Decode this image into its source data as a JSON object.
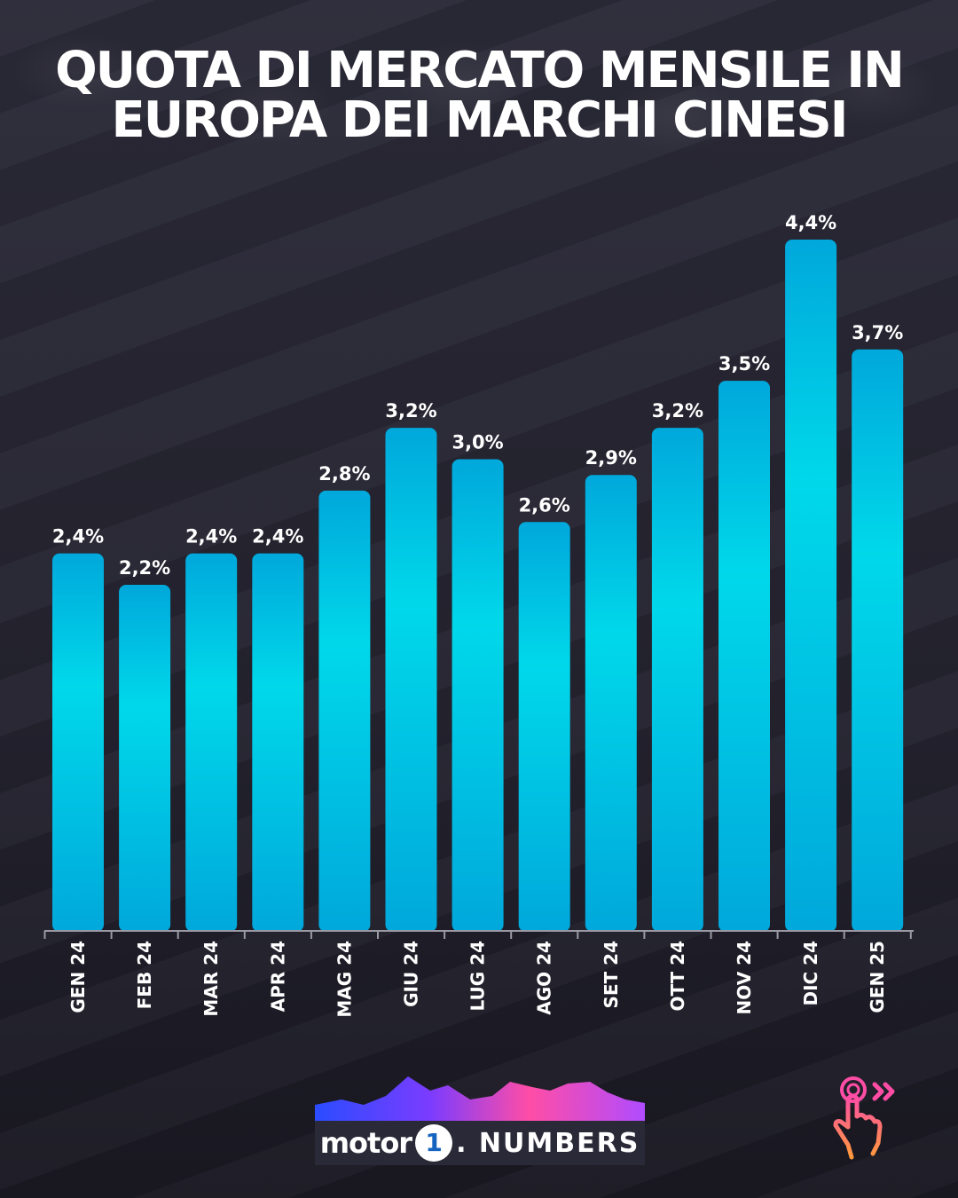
{
  "title_lines": [
    "QUOTA DI MERCATO MENSILE IN",
    "EUROPA DEI MARCHI CINESI"
  ],
  "logo": {
    "motor": "motor",
    "one": "1",
    "numbers": ". NUMBERS"
  },
  "colors": {
    "bar_top": "#00a8db",
    "bar_bottom": "#00d8ea",
    "background": "#22212e",
    "text": "#ffffff"
  },
  "icons": {
    "swipe": "swipe-hand-icon"
  },
  "chart_data": {
    "type": "bar",
    "categories": [
      "GEN 24",
      "FEB 24",
      "MAR 24",
      "APR 24",
      "MAG 24",
      "GIU 24",
      "LUG 24",
      "AGO 24",
      "SET 24",
      "OTT 24",
      "NOV 24",
      "DIC 24",
      "GEN 25"
    ],
    "values": [
      2.4,
      2.2,
      2.4,
      2.4,
      2.8,
      3.2,
      3.0,
      2.6,
      2.9,
      3.2,
      3.5,
      4.4,
      3.7
    ],
    "data_labels": [
      "2,4%",
      "2,2%",
      "2,4%",
      "2,4%",
      "2,8%",
      "3,2%",
      "3,0%",
      "2,6%",
      "2,9%",
      "3,2%",
      "3,5%",
      "4,4%",
      "3,7%"
    ],
    "title": "QUOTA DI MERCATO MENSILE IN EUROPA DEI MARCHI CINESI",
    "xlabel": "",
    "ylabel": "",
    "ylim": [
      0,
      4.4
    ],
    "grid": false,
    "legend": "none"
  }
}
